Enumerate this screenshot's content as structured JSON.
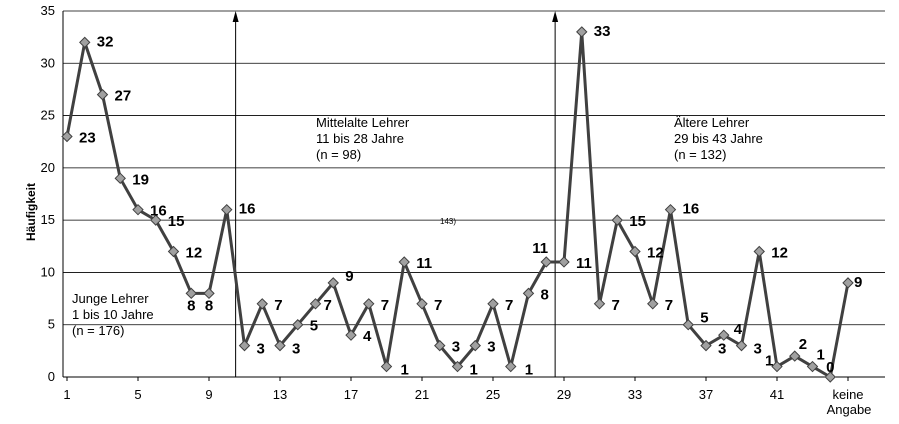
{
  "chart_data": {
    "type": "line",
    "ylabel": "Häufigkeit",
    "xlabel": "",
    "ylim": [
      0,
      35
    ],
    "yticks": [
      "0",
      "5",
      "10",
      "15",
      "20",
      "25",
      "30",
      "35"
    ],
    "grid": true,
    "x": [
      1,
      2,
      3,
      4,
      5,
      6,
      7,
      8,
      9,
      10,
      11,
      12,
      13,
      14,
      15,
      16,
      17,
      18,
      19,
      20,
      21,
      22,
      23,
      24,
      25,
      26,
      27,
      28,
      29,
      30,
      31,
      32,
      33,
      34,
      35,
      36,
      37,
      38,
      39,
      40,
      41,
      42,
      43,
      44,
      45
    ],
    "xtick_labels": [
      {
        "x": 1,
        "label": "1"
      },
      {
        "x": 5,
        "label": "5"
      },
      {
        "x": 9,
        "label": "9"
      },
      {
        "x": 13,
        "label": "13"
      },
      {
        "x": 17,
        "label": "17"
      },
      {
        "x": 21,
        "label": "21"
      },
      {
        "x": 25,
        "label": "25"
      },
      {
        "x": 29,
        "label": "29"
      },
      {
        "x": 33,
        "label": "33"
      },
      {
        "x": 37,
        "label": "37"
      },
      {
        "x": 41,
        "label": "41"
      },
      {
        "x": 45,
        "label": "keine",
        "label2": "Angabe"
      }
    ],
    "series": [
      {
        "values": [
          23,
          32,
          27,
          19,
          16,
          15,
          12,
          8,
          8,
          16,
          3,
          7,
          3,
          5,
          7,
          9,
          4,
          7,
          1,
          11,
          7,
          3,
          1,
          3,
          7,
          1,
          8,
          11,
          11,
          33,
          7,
          15,
          12,
          7,
          16,
          5,
          3,
          4,
          3,
          12,
          1,
          2,
          1,
          0,
          9
        ],
        "color": "#404040",
        "marker_color": "#a0a0a0"
      }
    ],
    "data_labels": [
      "23",
      "32",
      "27",
      "19",
      "16",
      "15",
      "12",
      "8",
      "8",
      "16",
      "3",
      "7",
      "3",
      "5",
      "7",
      "9",
      "4",
      "7",
      "1",
      "11",
      "7",
      "3",
      "1",
      "3",
      "7",
      "1",
      "8",
      "11",
      "11",
      "33",
      "7",
      "15",
      "12",
      "7",
      "16",
      "5",
      "3",
      "4",
      "3",
      "12",
      "1",
      "2",
      "1",
      "0",
      "9"
    ],
    "dividers": [
      10.5,
      28.5
    ],
    "annotations": [
      {
        "lines": [
          "Junge Lehrer",
          "1 bis 10 Jahre",
          "(n = 176)"
        ]
      },
      {
        "lines": [
          "Mittelalte Lehrer",
          "11 bis 28 Jahre",
          "(n = 98)"
        ]
      },
      {
        "lines": [
          "Ältere Lehrer",
          "29 bis 43 Jahre",
          "(n = 132)"
        ]
      }
    ],
    "stray_text": "143)"
  }
}
